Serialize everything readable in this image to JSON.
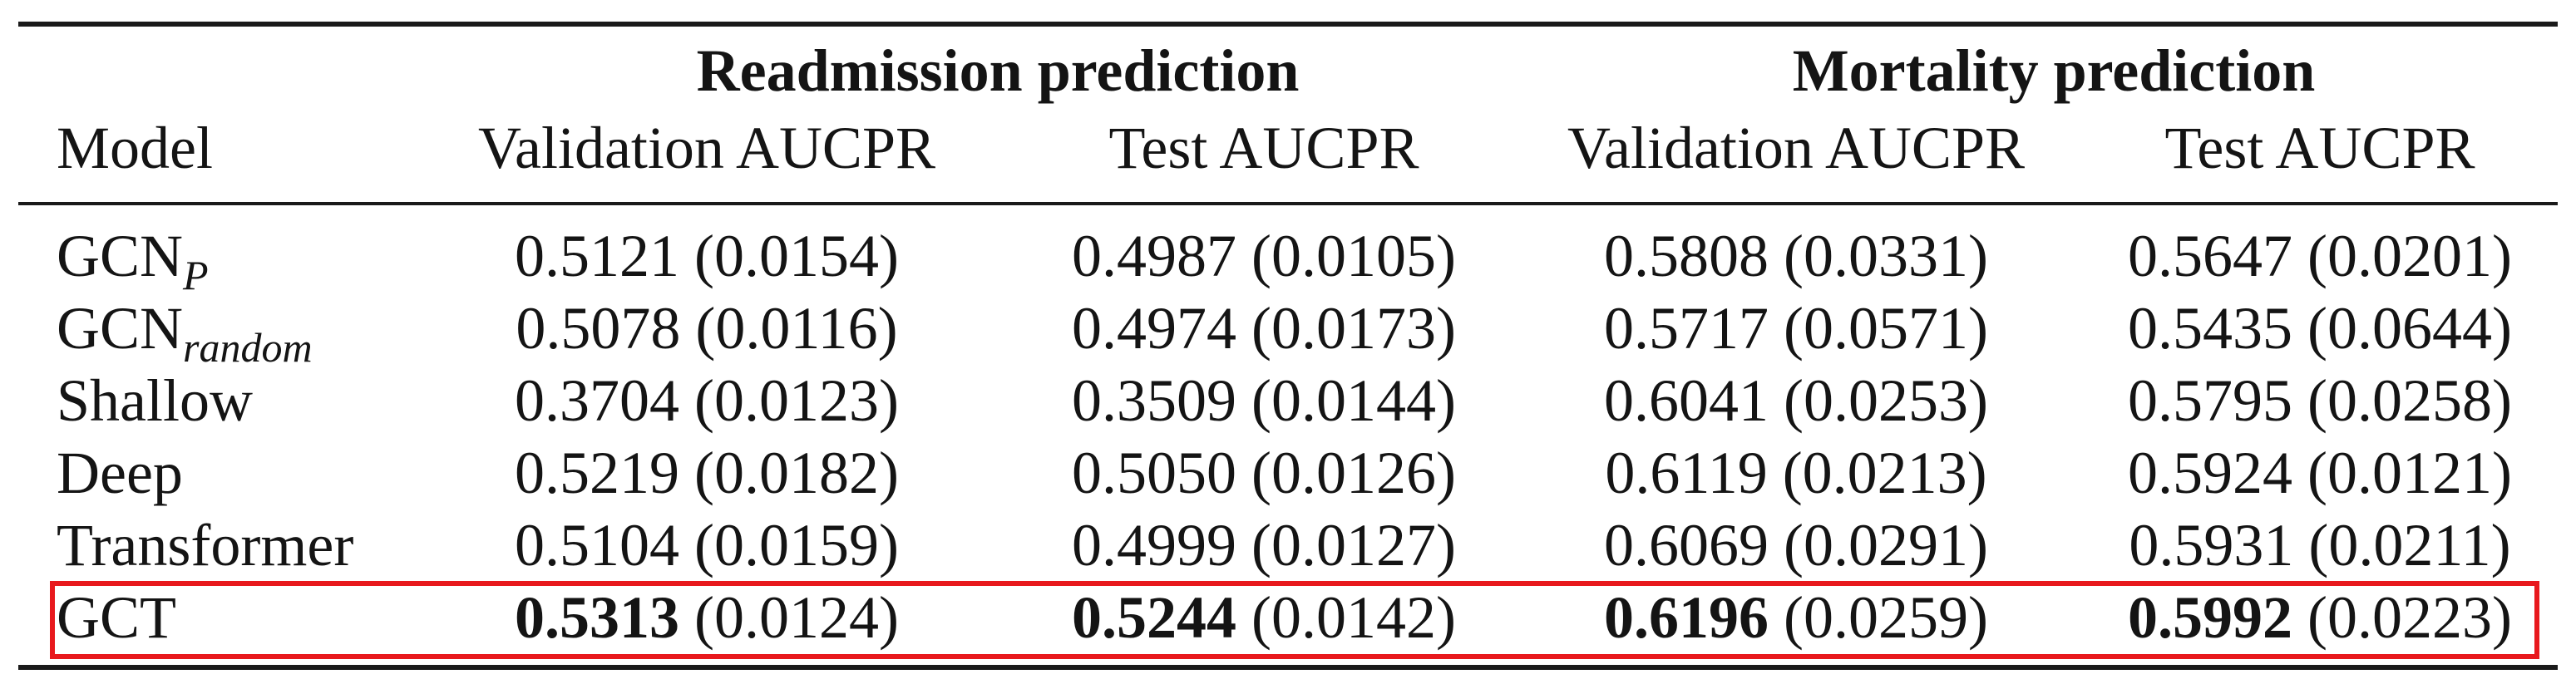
{
  "table": {
    "group_headers": [
      "Readmission prediction",
      "Mortality prediction"
    ],
    "column_headers": [
      "Model",
      "Validation AUCPR",
      "Test AUCPR",
      "Validation AUCPR",
      "Test AUCPR"
    ],
    "rows": [
      {
        "model": "GCN",
        "model_sub": "P",
        "cells": [
          {
            "value": "0.5121",
            "sd": "(0.0154)"
          },
          {
            "value": "0.4987",
            "sd": "(0.0105)"
          },
          {
            "value": "0.5808",
            "sd": "(0.0331)"
          },
          {
            "value": "0.5647",
            "sd": "(0.0201)"
          }
        ]
      },
      {
        "model": "GCN",
        "model_sub": "random",
        "cells": [
          {
            "value": "0.5078",
            "sd": "(0.0116)"
          },
          {
            "value": "0.4974",
            "sd": "(0.0173)"
          },
          {
            "value": "0.5717",
            "sd": "(0.0571)"
          },
          {
            "value": "0.5435",
            "sd": "(0.0644)"
          }
        ]
      },
      {
        "model": "Shallow",
        "model_sub": "",
        "cells": [
          {
            "value": "0.3704",
            "sd": "(0.0123)"
          },
          {
            "value": "0.3509",
            "sd": "(0.0144)"
          },
          {
            "value": "0.6041",
            "sd": "(0.0253)"
          },
          {
            "value": "0.5795",
            "sd": "(0.0258)"
          }
        ]
      },
      {
        "model": "Deep",
        "model_sub": "",
        "cells": [
          {
            "value": "0.5219",
            "sd": "(0.0182)"
          },
          {
            "value": "0.5050",
            "sd": "(0.0126)"
          },
          {
            "value": "0.6119",
            "sd": "(0.0213)"
          },
          {
            "value": "0.5924",
            "sd": "(0.0121)"
          }
        ]
      },
      {
        "model": "Transformer",
        "model_sub": "",
        "cells": [
          {
            "value": "0.5104",
            "sd": "(0.0159)"
          },
          {
            "value": "0.4999",
            "sd": "(0.0127)"
          },
          {
            "value": "0.6069",
            "sd": "(0.0291)"
          },
          {
            "value": "0.5931",
            "sd": "(0.0211)"
          }
        ]
      },
      {
        "model": "GCT",
        "model_sub": "",
        "cells": [
          {
            "value": "0.5313",
            "sd": "(0.0124)"
          },
          {
            "value": "0.5244",
            "sd": "(0.0142)"
          },
          {
            "value": "0.6196",
            "sd": "(0.0259)"
          },
          {
            "value": "0.5992",
            "sd": "(0.0223)"
          }
        ]
      }
    ],
    "best_row_index": 5,
    "highlight_color": "#e8191d"
  }
}
